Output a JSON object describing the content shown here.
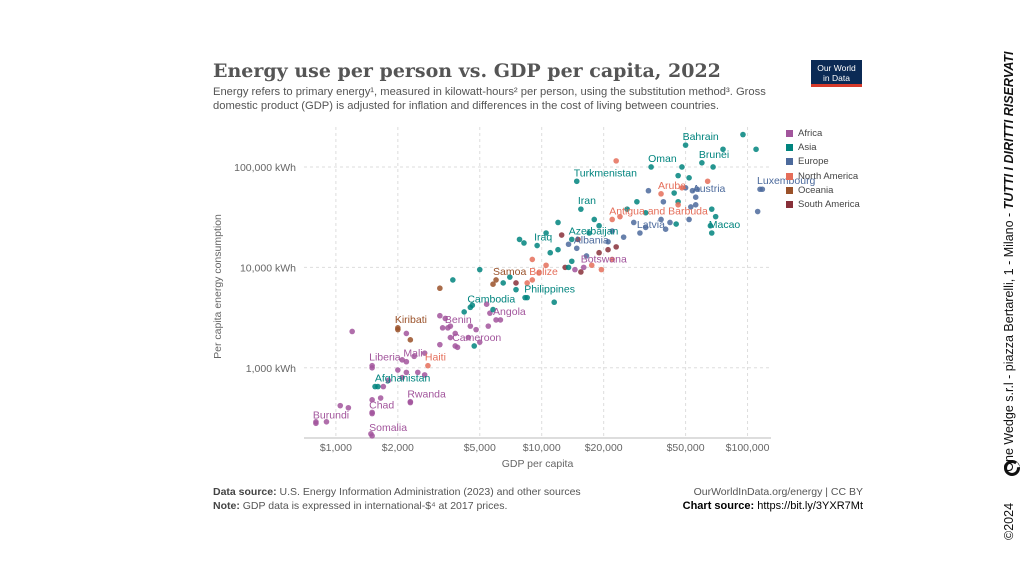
{
  "header": {
    "title": "Energy use per person vs. GDP per capita, 2022",
    "subtitle": "Energy refers to primary energy¹, measured in kilowatt-hours² per person, using the substitution method³. Gross domestic product (GDP) is adjusted for inflation and differences in the cost of living between countries.",
    "logo_line1": "Our World",
    "logo_line2": "in Data"
  },
  "footer": {
    "source_label": "Data source:",
    "source_text": "U.S. Energy Information Administration (2023) and other sources",
    "note_label": "Note:",
    "note_text": "GDP data is expressed in international-$⁴ at 2017 prices.",
    "site_text": "OurWorldInData.org/energy | CC BY",
    "chart_source_label": "Chart source:",
    "chart_source_url": "https://bit.ly/3YXR7Mt"
  },
  "credit": {
    "copyright": "©2024",
    "address": "One Wedge s.r.l - piazza Bertarelli, 1 - Milano - ",
    "rights": "TUTTI I DIRITTI RISERVATI"
  },
  "colors": {
    "Africa": "#a2559c",
    "Asia": "#00847e",
    "Europe": "#4c6a9c",
    "North America": "#e56e5a",
    "Oceania": "#9a5129",
    "South America": "#883039"
  },
  "chart_data": {
    "type": "scatter",
    "xlabel": "GDP per capita",
    "ylabel": "Per capita energy consumption",
    "x_scale": "log",
    "y_scale": "log",
    "xlim": [
      700,
      130000
    ],
    "ylim": [
      200,
      250000
    ],
    "x_ticks": [
      {
        "value": 1000,
        "label": "$1,000"
      },
      {
        "value": 2000,
        "label": "$2,000"
      },
      {
        "value": 5000,
        "label": "$5,000"
      },
      {
        "value": 10000,
        "label": "$10,000"
      },
      {
        "value": 20000,
        "label": "$20,000"
      },
      {
        "value": 50000,
        "label": "$50,000"
      },
      {
        "value": 100000,
        "label": "$100,000"
      }
    ],
    "y_ticks": [
      {
        "value": 1000,
        "label": "1,000 kWh"
      },
      {
        "value": 10000,
        "label": "10,000 kWh"
      },
      {
        "value": 100000,
        "label": "100,000 kWh"
      }
    ],
    "grid": true,
    "legend_position": "right",
    "legend": [
      "Africa",
      "Asia",
      "Europe",
      "North America",
      "Oceania",
      "South America"
    ],
    "labeled_points": [
      {
        "name": "Bahrain",
        "region": "Asia",
        "x": 50000,
        "y": 165000
      },
      {
        "name": "Brunei",
        "region": "Asia",
        "x": 60000,
        "y": 110000
      },
      {
        "name": "Oman",
        "region": "Asia",
        "x": 34000,
        "y": 100000
      },
      {
        "name": "Turkmenistan",
        "region": "Asia",
        "x": 14800,
        "y": 72000
      },
      {
        "name": "Luxembourg",
        "region": "Europe",
        "x": 115000,
        "y": 60000
      },
      {
        "name": "Aruba",
        "region": "North America",
        "x": 38000,
        "y": 54000
      },
      {
        "name": "Austria",
        "region": "Europe",
        "x": 56000,
        "y": 50000
      },
      {
        "name": "Iran",
        "region": "Asia",
        "x": 15500,
        "y": 38000
      },
      {
        "name": "Antigua and Barbuda",
        "region": "North America",
        "x": 22000,
        "y": 30000
      },
      {
        "name": "Macao",
        "region": "Asia",
        "x": 67000,
        "y": 22000
      },
      {
        "name": "Latvia",
        "region": "Europe",
        "x": 30000,
        "y": 22000
      },
      {
        "name": "Azerbaijan",
        "region": "Asia",
        "x": 14000,
        "y": 19000
      },
      {
        "name": "Iraq",
        "region": "Asia",
        "x": 9500,
        "y": 16500
      },
      {
        "name": "Albania",
        "region": "Europe",
        "x": 14800,
        "y": 15500
      },
      {
        "name": "Botswana",
        "region": "Africa",
        "x": 16000,
        "y": 10000
      },
      {
        "name": "Samoa",
        "region": "Oceania",
        "x": 6000,
        "y": 7500
      },
      {
        "name": "Belize",
        "region": "North America",
        "x": 9000,
        "y": 7500
      },
      {
        "name": "Philippines",
        "region": "Asia",
        "x": 8500,
        "y": 5000
      },
      {
        "name": "Cambodia",
        "region": "Asia",
        "x": 4500,
        "y": 4000
      },
      {
        "name": "Angola",
        "region": "Africa",
        "x": 6000,
        "y": 3000
      },
      {
        "name": "Kiribati",
        "region": "Oceania",
        "x": 2000,
        "y": 2500
      },
      {
        "name": "Benin",
        "region": "Africa",
        "x": 3500,
        "y": 2500
      },
      {
        "name": "Cameroon",
        "region": "Africa",
        "x": 3800,
        "y": 1650
      },
      {
        "name": "Liberia",
        "region": "Africa",
        "x": 1500,
        "y": 1050
      },
      {
        "name": "Mali",
        "region": "Africa",
        "x": 2200,
        "y": 1150
      },
      {
        "name": "Haiti",
        "region": "North America",
        "x": 2800,
        "y": 1050
      },
      {
        "name": "Afghanistan",
        "region": "Asia",
        "x": 1600,
        "y": 650
      },
      {
        "name": "Rwanda",
        "region": "Africa",
        "x": 2300,
        "y": 450
      },
      {
        "name": "Chad",
        "region": "Africa",
        "x": 1500,
        "y": 350
      },
      {
        "name": "Burundi",
        "region": "Africa",
        "x": 800,
        "y": 280
      },
      {
        "name": "Somalia",
        "region": "Africa",
        "x": 1500,
        "y": 210
      }
    ],
    "points": [
      {
        "region": "Asia",
        "x": 95000,
        "y": 210000
      },
      {
        "region": "Asia",
        "x": 110000,
        "y": 150000
      },
      {
        "region": "Asia",
        "x": 76000,
        "y": 150000
      },
      {
        "region": "Asia",
        "x": 48000,
        "y": 100000
      },
      {
        "region": "North America",
        "x": 23000,
        "y": 115000
      },
      {
        "region": "Asia",
        "x": 68000,
        "y": 100000
      },
      {
        "region": "Asia",
        "x": 52000,
        "y": 78000
      },
      {
        "region": "Asia",
        "x": 46000,
        "y": 82000
      },
      {
        "region": "North America",
        "x": 64000,
        "y": 72000
      },
      {
        "region": "Europe",
        "x": 118000,
        "y": 60000
      },
      {
        "region": "Europe",
        "x": 50000,
        "y": 62000
      },
      {
        "region": "Europe",
        "x": 54000,
        "y": 58000
      },
      {
        "region": "Europe",
        "x": 57000,
        "y": 60000
      },
      {
        "region": "North America",
        "x": 48000,
        "y": 62000
      },
      {
        "region": "Asia",
        "x": 44000,
        "y": 55000
      },
      {
        "region": "Europe",
        "x": 33000,
        "y": 58000
      },
      {
        "region": "Europe",
        "x": 39000,
        "y": 45000
      },
      {
        "region": "Asia",
        "x": 46000,
        "y": 45000
      },
      {
        "region": "North America",
        "x": 46000,
        "y": 42000
      },
      {
        "region": "Europe",
        "x": 53000,
        "y": 40000
      },
      {
        "region": "Europe",
        "x": 56000,
        "y": 42000
      },
      {
        "region": "Asia",
        "x": 67000,
        "y": 38000
      },
      {
        "region": "Europe",
        "x": 112000,
        "y": 36000
      },
      {
        "region": "Asia",
        "x": 29000,
        "y": 45000
      },
      {
        "region": "Asia",
        "x": 26000,
        "y": 38000
      },
      {
        "region": "Asia",
        "x": 32000,
        "y": 35000
      },
      {
        "region": "Asia",
        "x": 70000,
        "y": 32000
      },
      {
        "region": "Europe",
        "x": 52000,
        "y": 30000
      },
      {
        "region": "North America",
        "x": 24000,
        "y": 32000
      },
      {
        "region": "Europe",
        "x": 28000,
        "y": 28000
      },
      {
        "region": "Europe",
        "x": 42000,
        "y": 28000
      },
      {
        "region": "Europe",
        "x": 38000,
        "y": 30000
      },
      {
        "region": "Europe",
        "x": 32000,
        "y": 25000
      },
      {
        "region": "Asia",
        "x": 45000,
        "y": 27000
      },
      {
        "region": "Europe",
        "x": 40000,
        "y": 24000
      },
      {
        "region": "Asia",
        "x": 66000,
        "y": 26000
      },
      {
        "region": "Asia",
        "x": 18000,
        "y": 30000
      },
      {
        "region": "Asia",
        "x": 12000,
        "y": 28000
      },
      {
        "region": "Asia",
        "x": 19000,
        "y": 26000
      },
      {
        "region": "Asia",
        "x": 17000,
        "y": 22000
      },
      {
        "region": "Europe",
        "x": 22000,
        "y": 23000
      },
      {
        "region": "Europe",
        "x": 25000,
        "y": 20000
      },
      {
        "region": "Europe",
        "x": 21000,
        "y": 18000
      },
      {
        "region": "South America",
        "x": 23000,
        "y": 16000
      },
      {
        "region": "Asia",
        "x": 10500,
        "y": 22000
      },
      {
        "region": "South America",
        "x": 15000,
        "y": 19000
      },
      {
        "region": "South America",
        "x": 12500,
        "y": 21000
      },
      {
        "region": "South America",
        "x": 21000,
        "y": 15000
      },
      {
        "region": "Europe",
        "x": 13500,
        "y": 17000
      },
      {
        "region": "South America",
        "x": 19000,
        "y": 14000
      },
      {
        "region": "Asia",
        "x": 7800,
        "y": 19000
      },
      {
        "region": "Asia",
        "x": 8200,
        "y": 17500
      },
      {
        "region": "Asia",
        "x": 11000,
        "y": 14000
      },
      {
        "region": "Asia",
        "x": 12000,
        "y": 15000
      },
      {
        "region": "Europe",
        "x": 16500,
        "y": 13000
      },
      {
        "region": "North America",
        "x": 17500,
        "y": 10500
      },
      {
        "region": "Asia",
        "x": 14000,
        "y": 11500
      },
      {
        "region": "North America",
        "x": 19500,
        "y": 9500
      },
      {
        "region": "North America",
        "x": 22000,
        "y": 12000
      },
      {
        "region": "South America",
        "x": 13000,
        "y": 10000
      },
      {
        "region": "Africa",
        "x": 14500,
        "y": 9500
      },
      {
        "region": "North America",
        "x": 9000,
        "y": 12000
      },
      {
        "region": "North America",
        "x": 10500,
        "y": 10500
      },
      {
        "region": "Asia",
        "x": 13500,
        "y": 10000
      },
      {
        "region": "South America",
        "x": 15500,
        "y": 9000
      },
      {
        "region": "North America",
        "x": 9700,
        "y": 8800
      },
      {
        "region": "Asia",
        "x": 3700,
        "y": 7500
      },
      {
        "region": "Oceania",
        "x": 5800,
        "y": 6800
      },
      {
        "region": "Asia",
        "x": 6500,
        "y": 7000
      },
      {
        "region": "Asia",
        "x": 7000,
        "y": 8000
      },
      {
        "region": "South America",
        "x": 7500,
        "y": 7000
      },
      {
        "region": "North America",
        "x": 8500,
        "y": 7000
      },
      {
        "region": "Oceania",
        "x": 3200,
        "y": 6200
      },
      {
        "region": "Asia",
        "x": 5000,
        "y": 9500
      },
      {
        "region": "Asia",
        "x": 7500,
        "y": 6000
      },
      {
        "region": "Asia",
        "x": 8300,
        "y": 5000
      },
      {
        "region": "Asia",
        "x": 11500,
        "y": 4500
      },
      {
        "region": "Asia",
        "x": 4600,
        "y": 4200
      },
      {
        "region": "Africa",
        "x": 5600,
        "y": 3500
      },
      {
        "region": "Asia",
        "x": 5800,
        "y": 3800
      },
      {
        "region": "Asia",
        "x": 4200,
        "y": 3600
      },
      {
        "region": "Africa",
        "x": 5400,
        "y": 4300
      },
      {
        "region": "Africa",
        "x": 6300,
        "y": 3000
      },
      {
        "region": "Africa",
        "x": 5500,
        "y": 2600
      },
      {
        "region": "Oceania",
        "x": 2000,
        "y": 2400
      },
      {
        "region": "Africa",
        "x": 3200,
        "y": 3300
      },
      {
        "region": "Africa",
        "x": 3400,
        "y": 3100
      },
      {
        "region": "Africa",
        "x": 3300,
        "y": 2500
      },
      {
        "region": "Africa",
        "x": 3600,
        "y": 2600
      },
      {
        "region": "Africa",
        "x": 4500,
        "y": 2600
      },
      {
        "region": "Africa",
        "x": 4800,
        "y": 2400
      },
      {
        "region": "Africa",
        "x": 3800,
        "y": 2200
      },
      {
        "region": "Africa",
        "x": 3600,
        "y": 2000
      },
      {
        "region": "Africa",
        "x": 4400,
        "y": 2000
      },
      {
        "region": "Africa",
        "x": 5000,
        "y": 1800
      },
      {
        "region": "Asia",
        "x": 4700,
        "y": 1650
      },
      {
        "region": "Oceania",
        "x": 2300,
        "y": 1900
      },
      {
        "region": "Africa",
        "x": 2200,
        "y": 2200
      },
      {
        "region": "Africa",
        "x": 1200,
        "y": 2300
      },
      {
        "region": "Africa",
        "x": 3900,
        "y": 1600
      },
      {
        "region": "Africa",
        "x": 3200,
        "y": 1700
      },
      {
        "region": "Africa",
        "x": 2700,
        "y": 1400
      },
      {
        "region": "Africa",
        "x": 2400,
        "y": 1300
      },
      {
        "region": "Africa",
        "x": 2100,
        "y": 1200
      },
      {
        "region": "Africa",
        "x": 1500,
        "y": 1000
      },
      {
        "region": "Africa",
        "x": 2000,
        "y": 950
      },
      {
        "region": "Africa",
        "x": 2200,
        "y": 900
      },
      {
        "region": "Africa",
        "x": 2500,
        "y": 900
      },
      {
        "region": "Africa",
        "x": 2700,
        "y": 850
      },
      {
        "region": "Asia",
        "x": 1550,
        "y": 650
      },
      {
        "region": "Africa",
        "x": 1800,
        "y": 750
      },
      {
        "region": "Africa",
        "x": 2100,
        "y": 800
      },
      {
        "region": "Africa",
        "x": 2300,
        "y": 460
      },
      {
        "region": "Africa",
        "x": 1500,
        "y": 480
      },
      {
        "region": "Africa",
        "x": 1650,
        "y": 500
      },
      {
        "region": "Africa",
        "x": 1700,
        "y": 650
      },
      {
        "region": "Africa",
        "x": 1500,
        "y": 360
      },
      {
        "region": "Africa",
        "x": 1050,
        "y": 420
      },
      {
        "region": "Africa",
        "x": 1150,
        "y": 400
      },
      {
        "region": "Africa",
        "x": 800,
        "y": 290
      },
      {
        "region": "Africa",
        "x": 900,
        "y": 290
      },
      {
        "region": "Africa",
        "x": 1480,
        "y": 220
      }
    ]
  }
}
